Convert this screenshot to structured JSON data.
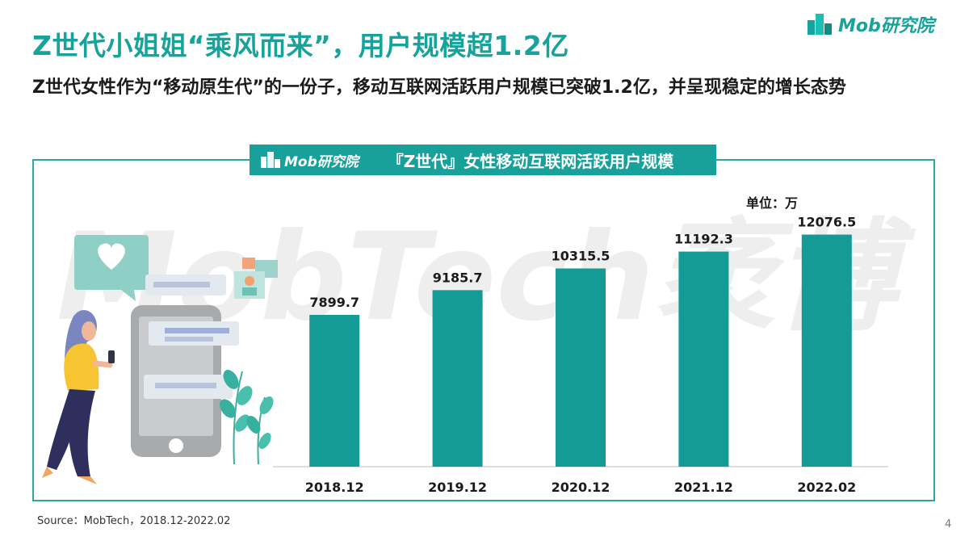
{
  "header": {
    "title": "Z世代小姐姐“乘风而来”，用户规模超1.2亿",
    "subtitle": "Z世代女性作为“移动原生代”的一份子，移动互联网活跃用户规模已突破1.2亿，并呈现稳定的增长态势",
    "logo_text": "Mob研究院"
  },
  "banner": {
    "logo_text": "Mob研究院",
    "title": "『Z世代』女性移动互联网活跃用户规模"
  },
  "watermark": "MobTech袤博",
  "colors": {
    "accent": "#16a39b",
    "bar": "#159b95",
    "border": "#2aa8a0"
  },
  "chart_data": {
    "type": "bar",
    "title": "『Z世代』女性移动互联网活跃用户规模",
    "unit_label": "单位：万",
    "categories": [
      "2018.12",
      "2019.12",
      "2020.12",
      "2021.12",
      "2022.02"
    ],
    "values": [
      7899.7,
      9185.7,
      10315.5,
      11192.3,
      12076.5
    ],
    "value_labels": [
      "7899.7",
      "9185.7",
      "10315.5",
      "11192.3",
      "12076.5"
    ],
    "ylim": [
      0,
      14200
    ],
    "grid": false,
    "legend": "none"
  },
  "footer": {
    "source": "Source：MobTech，2018.12-2022.02",
    "page_number": "4"
  }
}
